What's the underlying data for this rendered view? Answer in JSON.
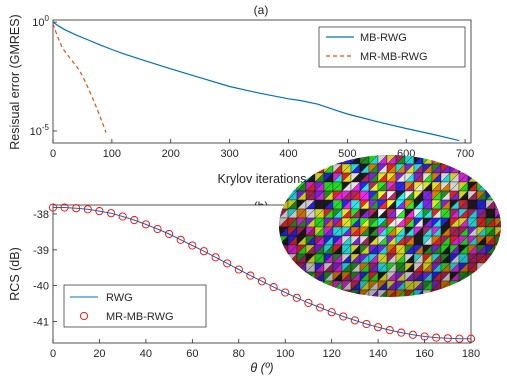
{
  "chart_data": [
    {
      "type": "line",
      "title": "(a)",
      "xlabel": "Krylov iterations",
      "ylabel": "Resisual error (GMRES)",
      "yscale": "log",
      "xlim": [
        0,
        710
      ],
      "ylim": [
        2.8e-06,
        1.25
      ],
      "xticks": [
        "0",
        "100",
        "200",
        "300",
        "400",
        "500",
        "600",
        "700"
      ],
      "yticks": [
        "10^0",
        "10^-5"
      ],
      "grid": false,
      "legend_position": "top-right",
      "series": [
        {
          "name": "MB-RWG",
          "color": "#0072BD",
          "dash": "solid",
          "x": [
            0,
            10,
            20,
            40,
            60,
            80,
            100,
            120,
            150,
            200,
            250,
            300,
            350,
            400,
            420,
            450,
            480,
            500,
            550,
            600,
            650,
            680,
            690
          ],
          "y": [
            1.0,
            0.65,
            0.45,
            0.25,
            0.15,
            0.09,
            0.055,
            0.035,
            0.019,
            0.0072,
            0.0028,
            0.0011,
            0.00055,
            0.0003,
            0.00025,
            0.00017,
            9e-05,
            6e-05,
            2.7e-05,
            1.3e-05,
            6.5e-06,
            4.2e-06,
            3.6e-06
          ]
        },
        {
          "name": "MR-MB-RWG",
          "color": "#D95319",
          "dash": "dashed",
          "x": [
            0,
            5,
            10,
            15,
            20,
            30,
            40,
            50,
            60,
            70,
            80,
            90
          ],
          "y": [
            0.85,
            0.35,
            0.15,
            0.075,
            0.045,
            0.02,
            0.0095,
            0.0035,
            0.0009,
            0.00022,
            4.5e-05,
            8.5e-06
          ]
        }
      ]
    },
    {
      "type": "line",
      "title": "(b)",
      "xlabel": "θ (º)",
      "ylabel": "RCS (dB)",
      "xlim": [
        0,
        180
      ],
      "ylim": [
        -41.6,
        -37.75
      ],
      "xticks": [
        "0",
        "20",
        "40",
        "60",
        "80",
        "100",
        "120",
        "140",
        "160",
        "180"
      ],
      "yticks": [
        "-38",
        "-39",
        "-40",
        "-41"
      ],
      "grid": false,
      "legend_position": "bottom-left",
      "series": [
        {
          "name": "RWG",
          "color": "#0072BD",
          "marker": "none",
          "x": [
            0,
            5,
            10,
            15,
            20,
            25,
            30,
            35,
            40,
            45,
            50,
            55,
            60,
            65,
            70,
            75,
            80,
            85,
            90,
            95,
            100,
            105,
            110,
            115,
            120,
            125,
            130,
            135,
            140,
            145,
            150,
            155,
            160,
            165,
            170,
            175,
            180
          ],
          "y": [
            -37.82,
            -37.82,
            -37.84,
            -37.87,
            -37.92,
            -37.98,
            -38.07,
            -38.17,
            -38.29,
            -38.42,
            -38.56,
            -38.72,
            -38.88,
            -39.04,
            -39.21,
            -39.38,
            -39.55,
            -39.72,
            -39.88,
            -40.04,
            -40.19,
            -40.34,
            -40.48,
            -40.61,
            -40.74,
            -40.86,
            -40.97,
            -41.07,
            -41.16,
            -41.24,
            -41.31,
            -41.37,
            -41.42,
            -41.45,
            -41.47,
            -41.48,
            -41.48
          ]
        },
        {
          "name": "MR-MB-RWG",
          "color": "#FF0000",
          "marker": "circle",
          "x": [
            0,
            5,
            10,
            15,
            20,
            25,
            30,
            35,
            40,
            45,
            50,
            55,
            60,
            65,
            70,
            75,
            80,
            85,
            90,
            95,
            100,
            105,
            110,
            115,
            120,
            125,
            130,
            135,
            140,
            145,
            150,
            155,
            160,
            165,
            170,
            175,
            180
          ],
          "y": [
            -37.82,
            -37.82,
            -37.84,
            -37.87,
            -37.92,
            -37.98,
            -38.07,
            -38.17,
            -38.29,
            -38.42,
            -38.56,
            -38.72,
            -38.88,
            -39.04,
            -39.21,
            -39.38,
            -39.55,
            -39.72,
            -39.88,
            -40.04,
            -40.19,
            -40.34,
            -40.48,
            -40.61,
            -40.74,
            -40.86,
            -40.97,
            -41.07,
            -41.16,
            -41.24,
            -41.31,
            -41.37,
            -41.42,
            -41.45,
            -41.47,
            -41.48,
            -41.48
          ]
        }
      ]
    }
  ],
  "inset": {
    "icon": "torus-mesh-icon",
    "palette": [
      "#ff2a2a",
      "#2aff2a",
      "#2a2aff",
      "#ffff2a",
      "#ff2aff",
      "#2affff",
      "#ff8c00",
      "#8c2aff",
      "#ffffff",
      "#1f1f1f",
      "#2aa02a",
      "#c02a6a"
    ]
  }
}
